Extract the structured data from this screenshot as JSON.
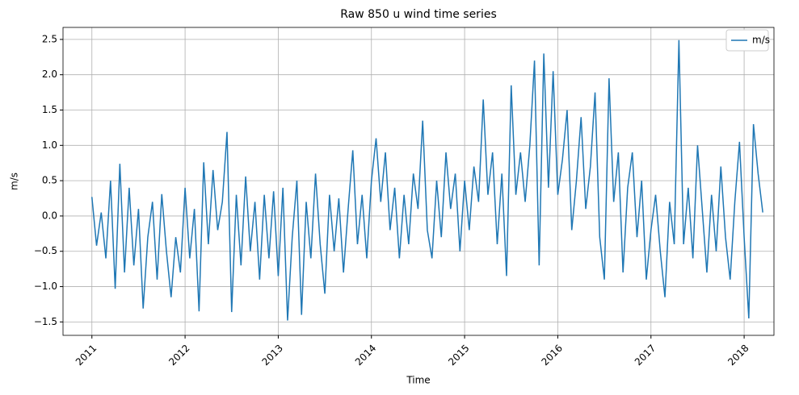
{
  "chart_data": {
    "type": "line",
    "title": "Raw 850 u wind time series",
    "x_label": "Time",
    "y_label": "m/s",
    "x": [
      2011,
      2011.05,
      2011.1,
      2011.15,
      2011.2,
      2011.25,
      2011.3,
      2011.35,
      2011.4,
      2011.45,
      2011.5,
      2011.55,
      2011.6,
      2011.65,
      2011.7,
      2011.75,
      2011.8,
      2011.85,
      2011.9,
      2011.95,
      2012,
      2012.05,
      2012.1,
      2012.15,
      2012.2,
      2012.25,
      2012.3,
      2012.35,
      2012.4,
      2012.45,
      2012.5,
      2012.55,
      2012.6,
      2012.65,
      2012.7,
      2012.75,
      2012.8,
      2012.85,
      2012.9,
      2012.95,
      2013,
      2013.05,
      2013.1,
      2013.15,
      2013.2,
      2013.25,
      2013.3,
      2013.35,
      2013.4,
      2013.45,
      2013.5,
      2013.55,
      2013.6,
      2013.65,
      2013.7,
      2013.75,
      2013.8,
      2013.85,
      2013.9,
      2013.95,
      2014,
      2014.05,
      2014.1,
      2014.15,
      2014.2,
      2014.25,
      2014.3,
      2014.35,
      2014.4,
      2014.45,
      2014.5,
      2014.55,
      2014.6,
      2014.65,
      2014.7,
      2014.75,
      2014.8,
      2014.85,
      2014.9,
      2014.95,
      2015,
      2015.05,
      2015.1,
      2015.15,
      2015.2,
      2015.25,
      2015.3,
      2015.35,
      2015.4,
      2015.45,
      2015.5,
      2015.55,
      2015.6,
      2015.65,
      2015.7,
      2015.75,
      2015.8,
      2015.85,
      2015.9,
      2015.95,
      2016,
      2016.05,
      2016.1,
      2016.15,
      2016.2,
      2016.25,
      2016.3,
      2016.35,
      2016.4,
      2016.45,
      2016.5,
      2016.55,
      2016.6,
      2016.65,
      2016.7,
      2016.75,
      2016.8,
      2016.85,
      2016.9,
      2016.95,
      2017,
      2017.05,
      2017.1,
      2017.15,
      2017.2,
      2017.25,
      2017.3,
      2017.35,
      2017.4,
      2017.45,
      2017.5,
      2017.55,
      2017.6,
      2017.65,
      2017.7,
      2017.75,
      2017.8,
      2017.85,
      2017.9,
      2017.95,
      2018,
      2018.05,
      2018.1,
      2018.15,
      2018.2
    ],
    "series": [
      {
        "name": "m/s",
        "color": "#1f77b4",
        "values": [
          0.27,
          -0.42,
          0.05,
          -0.6,
          0.5,
          -1.03,
          0.74,
          -0.8,
          0.4,
          -0.7,
          0.1,
          -1.31,
          -0.3,
          0.2,
          -0.9,
          0.31,
          -0.5,
          -1.15,
          -0.3,
          -0.8,
          0.4,
          -0.6,
          0.1,
          -1.35,
          0.76,
          -0.4,
          0.65,
          -0.2,
          0.2,
          1.19,
          -1.36,
          0.3,
          -0.7,
          0.56,
          -0.5,
          0.2,
          -0.9,
          0.3,
          -0.6,
          0.35,
          -0.85,
          0.4,
          -1.48,
          -0.3,
          0.5,
          -1.4,
          0.2,
          -0.6,
          0.6,
          -0.4,
          -1.1,
          0.3,
          -0.5,
          0.25,
          -0.8,
          0.1,
          0.93,
          -0.4,
          0.3,
          -0.6,
          0.5,
          1.1,
          0.2,
          0.9,
          -0.2,
          0.4,
          -0.6,
          0.3,
          -0.4,
          0.6,
          0.1,
          1.35,
          -0.2,
          -0.6,
          0.5,
          -0.3,
          0.9,
          0.1,
          0.6,
          -0.5,
          0.5,
          -0.2,
          0.7,
          0.2,
          1.65,
          0.3,
          0.9,
          -0.4,
          0.6,
          -0.85,
          1.85,
          0.3,
          0.9,
          0.2,
          1.0,
          2.2,
          -0.7,
          2.3,
          0.4,
          2.05,
          0.3,
          0.8,
          1.5,
          -0.2,
          0.5,
          1.4,
          0.1,
          0.7,
          1.75,
          -0.3,
          -0.9,
          1.95,
          0.2,
          0.9,
          -0.8,
          0.4,
          0.9,
          -0.3,
          0.5,
          -0.9,
          -0.2,
          0.3,
          -0.5,
          -1.15,
          0.2,
          -0.4,
          2.49,
          -0.4,
          0.4,
          -0.6,
          1.0,
          0.1,
          -0.8,
          0.3,
          -0.5,
          0.7,
          -0.3,
          -0.9,
          0.2,
          1.05,
          -0.3,
          -1.45,
          1.3,
          0.6,
          0.05
        ]
      }
    ],
    "xlim": [
      2010.69,
      2018.32
    ],
    "xticks": [
      2011,
      2012,
      2013,
      2014,
      2015,
      2016,
      2017,
      2018
    ],
    "ylim": [
      -1.69,
      2.67
    ],
    "yticks": [
      {
        "value": -1.5,
        "label": "−1.5"
      },
      {
        "value": -1.0,
        "label": "−1.0"
      },
      {
        "value": -0.5,
        "label": "−0.5"
      },
      {
        "value": 0,
        "label": "0.0"
      },
      0.5,
      {
        "value": 1.0,
        "label": "1.0"
      },
      1.5,
      {
        "value": 2.0,
        "label": "2.0"
      },
      2.5
    ],
    "grid": true,
    "legend": "upper right"
  }
}
